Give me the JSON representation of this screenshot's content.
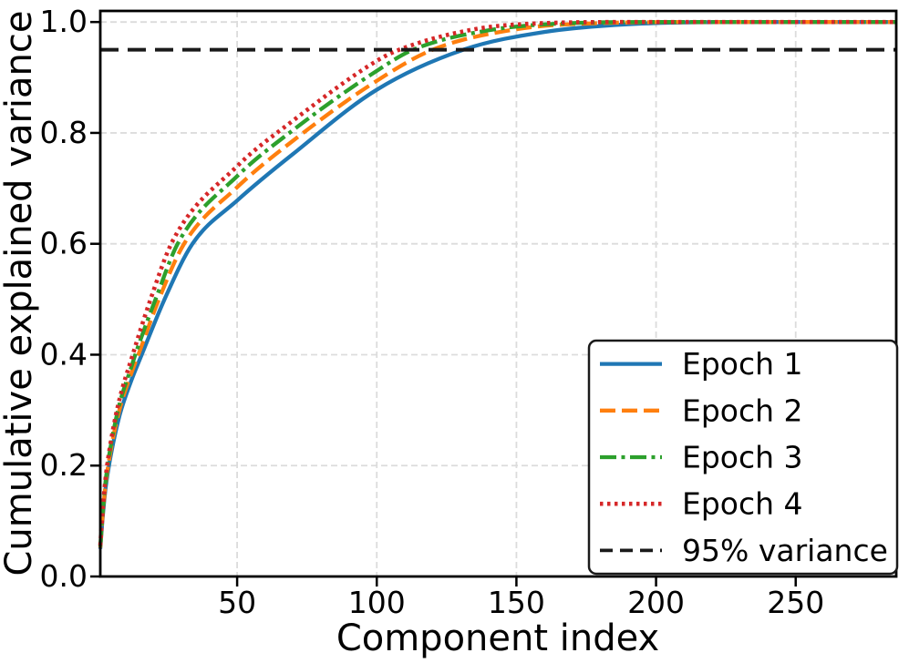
{
  "chart_data": {
    "type": "line",
    "title": "",
    "xlabel": "Component index",
    "ylabel": "Cumulative explained variance",
    "xlim": [
      1,
      286
    ],
    "ylim": [
      0,
      1.02
    ],
    "grid": true,
    "legend_position": "lower right",
    "xticks": [
      {
        "value": 50,
        "label": "50"
      },
      {
        "value": 100,
        "label": "100"
      },
      {
        "value": 150,
        "label": "150"
      },
      {
        "value": 200,
        "label": "200"
      },
      {
        "value": 250,
        "label": "250"
      }
    ],
    "yticks": [
      {
        "value": 0.0,
        "label": "0.0"
      },
      {
        "value": 0.2,
        "label": "0.2"
      },
      {
        "value": 0.4,
        "label": "0.4"
      },
      {
        "value": 0.6,
        "label": "0.6"
      },
      {
        "value": 0.8,
        "label": "0.8"
      },
      {
        "value": 1.0,
        "label": "1.0"
      }
    ],
    "series": [
      {
        "name": "Epoch 1",
        "color": "#1f77b4",
        "linestyle": "solid",
        "points": [
          [
            1,
            0.05
          ],
          [
            2,
            0.115
          ],
          [
            3,
            0.163
          ],
          [
            5,
            0.225
          ],
          [
            8,
            0.292
          ],
          [
            12,
            0.352
          ],
          [
            16,
            0.402
          ],
          [
            24,
            0.5
          ],
          [
            34,
            0.6
          ],
          [
            50,
            0.678
          ],
          [
            70,
            0.762
          ],
          [
            100,
            0.878
          ],
          [
            131,
            0.95
          ],
          [
            160,
            0.982
          ],
          [
            190,
            0.996
          ],
          [
            230,
            1.0
          ],
          [
            286,
            1.0
          ]
        ]
      },
      {
        "name": "Epoch 2",
        "color": "#ff7f0e",
        "linestyle": "dashed",
        "points": [
          [
            1,
            0.052
          ],
          [
            2,
            0.12
          ],
          [
            3,
            0.17
          ],
          [
            5,
            0.235
          ],
          [
            8,
            0.303
          ],
          [
            12,
            0.365
          ],
          [
            15,
            0.405
          ],
          [
            22,
            0.5
          ],
          [
            31,
            0.6
          ],
          [
            50,
            0.702
          ],
          [
            70,
            0.786
          ],
          [
            100,
            0.894
          ],
          [
            120,
            0.95
          ],
          [
            150,
            0.987
          ],
          [
            180,
            0.998
          ],
          [
            215,
            1.0
          ],
          [
            286,
            1.0
          ]
        ]
      },
      {
        "name": "Epoch 3",
        "color": "#2ca02c",
        "linestyle": "dashdot",
        "points": [
          [
            1,
            0.054
          ],
          [
            2,
            0.124
          ],
          [
            3,
            0.176
          ],
          [
            5,
            0.243
          ],
          [
            8,
            0.313
          ],
          [
            12,
            0.376
          ],
          [
            14,
            0.407
          ],
          [
            21,
            0.503
          ],
          [
            29,
            0.603
          ],
          [
            50,
            0.722
          ],
          [
            70,
            0.805
          ],
          [
            100,
            0.912
          ],
          [
            113,
            0.95
          ],
          [
            140,
            0.985
          ],
          [
            170,
            0.998
          ],
          [
            200,
            1.0
          ],
          [
            286,
            1.0
          ]
        ]
      },
      {
        "name": "Epoch 4",
        "color": "#d62728",
        "linestyle": "dotted",
        "points": [
          [
            1,
            0.056
          ],
          [
            2,
            0.128
          ],
          [
            3,
            0.182
          ],
          [
            5,
            0.25
          ],
          [
            8,
            0.322
          ],
          [
            12,
            0.39
          ],
          [
            19,
            0.5
          ],
          [
            27,
            0.606
          ],
          [
            50,
            0.74
          ],
          [
            70,
            0.822
          ],
          [
            100,
            0.93
          ],
          [
            108,
            0.95
          ],
          [
            135,
            0.987
          ],
          [
            160,
            0.998
          ],
          [
            190,
            1.0
          ],
          [
            286,
            1.0
          ]
        ]
      }
    ],
    "threshold": {
      "label": "95% variance",
      "value": 0.95,
      "color": "#1a1a1a",
      "linestyle": "dashed"
    },
    "colors": {
      "grid": "#dcdcdc",
      "spine": "#000000",
      "legend_border": "#1a1a1a",
      "legend_background": "#ffffff"
    }
  }
}
